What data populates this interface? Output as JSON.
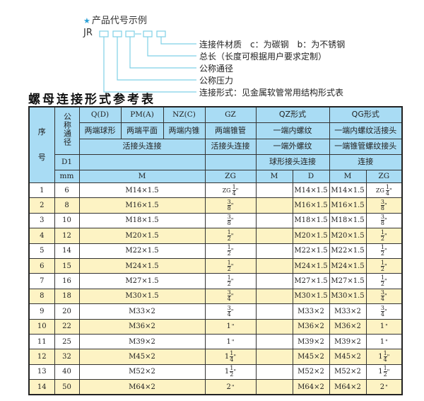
{
  "code_example": {
    "title": "产品代号示例",
    "prefix": "JR",
    "star_icon": "star-icon",
    "accent": "#2a9fd6",
    "labels": [
      "连接件材质　c：为碳钢　b：为不锈钢",
      "总长（长度可根据用户要求定制）",
      "公称通径",
      "公称压力",
      "连接形式：见金属软管常用结构形式表"
    ]
  },
  "table_title": "螺母连接形式参考表",
  "header": {
    "seq": "序\n\n\n号",
    "dn": "公称通径",
    "d1": "D1",
    "mm": "mm",
    "qd": "Q(D)",
    "pm": "PM(A)",
    "nz": "NZ(C)",
    "gz": "GZ",
    "qz": "QZ形式",
    "qg": "QG形式",
    "qd2": "两端球形",
    "pm2": "两端平面",
    "nz2": "两端内锥",
    "gz2": "两端锥管",
    "qz2": "一端内螺纹",
    "qg2": "一端内螺纹活接头",
    "live": "活接头连接",
    "gz3": "活接头连接",
    "qz3": "一端外螺纹",
    "qg3": "一端锥管螺纹接头",
    "qz4": "球形接头连接",
    "qg4": "连接",
    "m": "M",
    "zg": "ZG",
    "qz_m": "M",
    "qz_d": "D",
    "qg_m": "M",
    "qg_zg": "ZG"
  },
  "rows": [
    {
      "no": "1",
      "dn": "6",
      "m": "M14×1.5",
      "zg": {
        "prefix": "ZG",
        "whole": "",
        "num": "1",
        "den": "4"
      },
      "qz_d": "M14×1.5",
      "qg_m": "M14×1.5"
    },
    {
      "no": "2",
      "dn": "8",
      "m": "M16×1.5",
      "zg": {
        "prefix": "",
        "whole": "",
        "num": "3",
        "den": "8"
      },
      "qz_d": "M16×1.5",
      "qg_m": "M16×1.5"
    },
    {
      "no": "3",
      "dn": "10",
      "m": "M18×1.5",
      "zg": {
        "prefix": "",
        "whole": "",
        "num": "3",
        "den": "8"
      },
      "qz_d": "M18×1.5",
      "qg_m": "M18×1.5"
    },
    {
      "no": "4",
      "dn": "12",
      "m": "M20×1.5",
      "zg": {
        "prefix": "",
        "whole": "",
        "num": "1",
        "den": "2"
      },
      "qz_d": "M20×1.5",
      "qg_m": "M20×1.5"
    },
    {
      "no": "5",
      "dn": "14",
      "m": "M22×1.5",
      "zg": {
        "prefix": "",
        "whole": "",
        "num": "1",
        "den": "2"
      },
      "qz_d": "M22×1.5",
      "qg_m": "M22×1.5"
    },
    {
      "no": "6",
      "dn": "15",
      "m": "M24×1.5",
      "zg": {
        "prefix": "",
        "whole": "",
        "num": "1",
        "den": "2"
      },
      "qz_d": "M24×1.5",
      "qg_m": "M24×1.5"
    },
    {
      "no": "7",
      "dn": "16",
      "m": "M27×1.5",
      "zg": {
        "prefix": "",
        "whole": "",
        "num": "1",
        "den": "2"
      },
      "qz_d": "M27×1.5",
      "qg_m": "M27×1.5"
    },
    {
      "no": "8",
      "dn": "18",
      "m": "M30×1.5",
      "zg": {
        "prefix": "",
        "whole": "",
        "num": "3",
        "den": "4"
      },
      "qz_d": "M30×1.5",
      "qg_m": "M30×1.5"
    },
    {
      "no": "9",
      "dn": "20",
      "m": "M33×2",
      "zg": {
        "prefix": "",
        "whole": "",
        "num": "3",
        "den": "4"
      },
      "qz_d": "M33×2",
      "qg_m": "M33×2"
    },
    {
      "no": "10",
      "dn": "22",
      "m": "M36×2",
      "zg": {
        "prefix": "",
        "whole": "1",
        "num": "",
        "den": ""
      },
      "qz_d": "M36×2",
      "qg_m": "M36×2"
    },
    {
      "no": "11",
      "dn": "25",
      "m": "M39×2",
      "zg": {
        "prefix": "",
        "whole": "1",
        "num": "",
        "den": ""
      },
      "qz_d": "M39×2",
      "qg_m": "M39×2"
    },
    {
      "no": "12",
      "dn": "32",
      "m": "M45×2",
      "zg": {
        "prefix": "",
        "whole": "1",
        "num": "1",
        "den": "4"
      },
      "qz_d": "M45×2",
      "qg_m": "M45×2"
    },
    {
      "no": "13",
      "dn": "40",
      "m": "M52×2",
      "zg": {
        "prefix": "",
        "whole": "1",
        "num": "1",
        "den": "2"
      },
      "qz_d": "M52×2",
      "qg_m": "M52×2"
    },
    {
      "no": "14",
      "dn": "50",
      "m": "M64×2",
      "zg": {
        "prefix": "",
        "whole": "2",
        "num": "",
        "den": ""
      },
      "qz_d": "M64×2",
      "qg_m": "M64×2"
    }
  ]
}
